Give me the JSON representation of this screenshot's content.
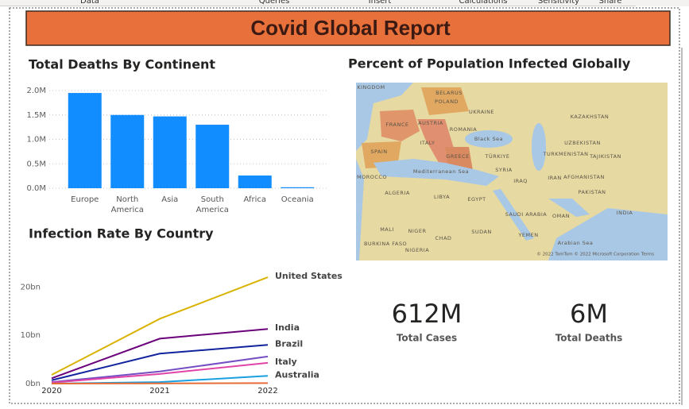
{
  "ribbon": {
    "tabs": [
      "Data",
      "Queries",
      "Insert",
      "Calculations",
      "Sensitivity",
      "Share"
    ]
  },
  "header": {
    "title": "Covid Global Report"
  },
  "chart_data": [
    {
      "type": "bar",
      "title": "Total Deaths By Continent",
      "categories": [
        "Europe",
        "North America",
        "Asia",
        "South America",
        "Africa",
        "Oceania"
      ],
      "values": [
        1.95,
        1.5,
        1.47,
        1.3,
        0.26,
        0.02
      ],
      "color": "#118dff",
      "ylim": [
        0,
        2.0
      ],
      "yticks": [
        {
          "value": 0,
          "label": "0.0M"
        },
        {
          "value": 0.5,
          "label": "0.5M"
        },
        {
          "value": 1.0,
          "label": "1.0M"
        },
        {
          "value": 1.5,
          "label": "1.5M"
        },
        {
          "value": 2.0,
          "label": "2.0M"
        }
      ],
      "grid": true
    },
    {
      "type": "line",
      "title": "Infection Rate By Country",
      "x": [
        2020,
        2021,
        2022
      ],
      "xlim": [
        2020,
        2022
      ],
      "xticks": [
        2020,
        2021,
        2022
      ],
      "ylim": [
        0,
        23
      ],
      "yticks": [
        {
          "value": 0,
          "label": "0bn"
        },
        {
          "value": 10,
          "label": "10bn"
        },
        {
          "value": 20,
          "label": "20bn"
        }
      ],
      "grid": false,
      "series": [
        {
          "name": "United States",
          "color": "#d9b300",
          "values": [
            1.8,
            13.4,
            22.0
          ]
        },
        {
          "name": "India",
          "color": "#6b007b",
          "values": [
            1.1,
            9.3,
            11.3
          ]
        },
        {
          "name": "Brazil",
          "color": "#12239e",
          "values": [
            0.7,
            6.2,
            8.0
          ]
        },
        {
          "color": "#744ec2",
          "values": [
            0.3,
            2.5,
            5.6
          ]
        },
        {
          "name": "Italy",
          "color": "#e044a7",
          "values": [
            0.2,
            2.0,
            4.3
          ]
        },
        {
          "name": "Australia",
          "color": "#1aa0e0",
          "values": [
            0.0,
            0.3,
            1.6
          ]
        },
        {
          "color": "#e66c37",
          "values": [
            0.0,
            0.05,
            0.1
          ]
        }
      ]
    }
  ],
  "map": {
    "title": "Percent of Population Infected Globally",
    "labels": [
      "KINGDOM",
      "POLAND",
      "BELARUS",
      "UKRAINE",
      "FRANCE",
      "AUSTRIA",
      "ROMANIA",
      "KAZAKHSTAN",
      "ITALY",
      "Black Sea",
      "SPAIN",
      "GREECE",
      "TÜRKIYE",
      "TURKMENISTAN",
      "UZBEKISTAN",
      "TAJIKISTAN",
      "MOROCCO",
      "Mediterranean Sea",
      "SYRIA",
      "IRAQ",
      "IRAN",
      "AFGHANISTAN",
      "PAKISTAN",
      "ALGERIA",
      "LIBYA",
      "EGYPT",
      "SAUDI ARABIA",
      "OMAN",
      "INDIA",
      "MALI",
      "NIGER",
      "CHAD",
      "SUDAN",
      "YEMEN",
      "Arabian Sea",
      "BURKINA FASO",
      "NIGERIA",
      "© 2022 TomTom © 2022 Microsoft Corporation",
      "Terms"
    ]
  },
  "kpis": [
    {
      "value": "612M",
      "label": "Total Cases"
    },
    {
      "value": "6M",
      "label": "Total Deaths"
    }
  ]
}
